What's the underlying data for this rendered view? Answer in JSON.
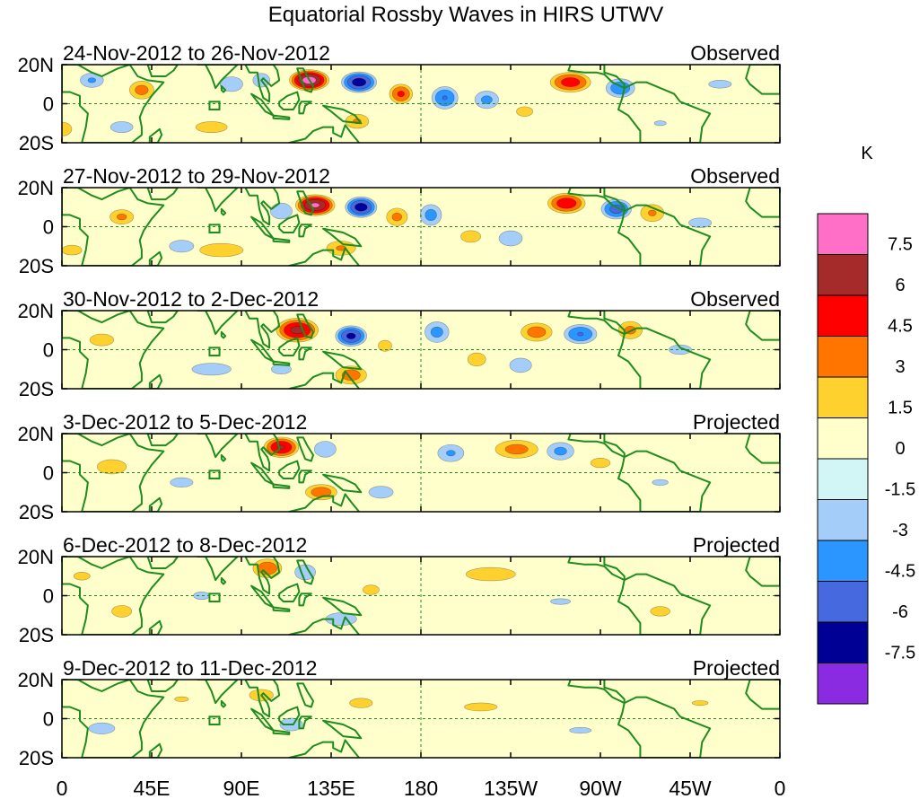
{
  "chart_data": {
    "type": "heatmap",
    "title": "Equatorial Rossby Waves in HIRS UTWV",
    "units": "K",
    "ylabel": "",
    "xlabel": "",
    "xlim": [
      0,
      360
    ],
    "ylim": [
      -20,
      20
    ],
    "x_ticks": [
      {
        "label": "0",
        "lon": 0
      },
      {
        "label": "45E",
        "lon": 45
      },
      {
        "label": "90E",
        "lon": 90
      },
      {
        "label": "135E",
        "lon": 135
      },
      {
        "label": "180",
        "lon": 180
      },
      {
        "label": "135W",
        "lon": 225
      },
      {
        "label": "90W",
        "lon": 270
      },
      {
        "label": "45W",
        "lon": 315
      },
      {
        "label": "0",
        "lon": 360
      }
    ],
    "y_ticks": [
      {
        "label": "20N",
        "lat": 20
      },
      {
        "label": "0",
        "lat": 0
      },
      {
        "label": "20S",
        "lat": -20
      }
    ],
    "colorbar": {
      "labels": [
        "7.5",
        "6",
        "4.5",
        "3",
        "1.5",
        "0",
        "-1.5",
        "-3",
        "-4.5",
        "-6",
        "-7.5"
      ],
      "colors": [
        "#ff6ec7",
        "#a52a2a",
        "#ff0000",
        "#ff7500",
        "#ffd12e",
        "#ffffcc",
        "#d2f5f5",
        "#a5cdf9",
        "#2b96ff",
        "#4669e0",
        "#000094",
        "#8a2be2"
      ]
    },
    "colors": {
      "coast": "#1e8c1e",
      "reference_line": "#1e8c1e"
    },
    "panels": [
      {
        "date_range": "24-Nov-2012 to 26-Nov-2012",
        "status": "Observed",
        "anomalies": [
          {
            "lon": 124,
            "lat": 12,
            "value": 8.3,
            "rx": 11,
            "ry": 6
          },
          {
            "lon": 149,
            "lat": 11,
            "value": -6.8,
            "rx": 10,
            "ry": 6
          },
          {
            "lon": 170,
            "lat": 5,
            "value": 4.8,
            "rx": 7,
            "ry": 6
          },
          {
            "lon": 192,
            "lat": 3,
            "value": -4.6,
            "rx": 8,
            "ry": 7
          },
          {
            "lon": 213,
            "lat": 2,
            "value": -3.4,
            "rx": 8,
            "ry": 6
          },
          {
            "lon": 255,
            "lat": 11,
            "value": 5.3,
            "rx": 12,
            "ry": 6
          },
          {
            "lon": 280,
            "lat": 8,
            "value": -4.2,
            "rx": 9,
            "ry": 6
          },
          {
            "lon": 40,
            "lat": 7,
            "value": 3.6,
            "rx": 8,
            "ry": 6
          },
          {
            "lon": 15,
            "lat": 12,
            "value": -3.2,
            "rx": 8,
            "ry": 5
          },
          {
            "lon": 85,
            "lat": 10,
            "value": -2.5,
            "rx": 9,
            "ry": 6
          },
          {
            "lon": 100,
            "lat": 12,
            "value": -3.0,
            "rx": 6,
            "ry": 5
          },
          {
            "lon": 75,
            "lat": -12,
            "value": 2.2,
            "rx": 14,
            "ry": 5
          },
          {
            "lon": 148,
            "lat": -9,
            "value": 3.2,
            "rx": 8,
            "ry": 5
          },
          {
            "lon": 30,
            "lat": -12,
            "value": -2.2,
            "rx": 10,
            "ry": 5
          },
          {
            "lon": 0,
            "lat": -13,
            "value": 3.0,
            "rx": 7,
            "ry": 5
          },
          {
            "lon": 232,
            "lat": -4,
            "value": 1.8,
            "rx": 10,
            "ry": 6
          },
          {
            "lon": 330,
            "lat": 10,
            "value": -1.8,
            "rx": 14,
            "ry": 5
          },
          {
            "lon": 300,
            "lat": -10,
            "value": -1.6,
            "rx": 12,
            "ry": 5
          }
        ]
      },
      {
        "date_range": "27-Nov-2012 to 29-Nov-2012",
        "status": "Observed",
        "anomalies": [
          {
            "lon": 127,
            "lat": 11,
            "value": 7.8,
            "rx": 11,
            "ry": 6
          },
          {
            "lon": 150,
            "lat": 10,
            "value": -6.8,
            "rx": 9,
            "ry": 6
          },
          {
            "lon": 168,
            "lat": 5,
            "value": 3.4,
            "rx": 7,
            "ry": 6
          },
          {
            "lon": 185,
            "lat": 6,
            "value": -3.6,
            "rx": 7,
            "ry": 7
          },
          {
            "lon": 253,
            "lat": 12,
            "value": 5.6,
            "rx": 11,
            "ry": 6
          },
          {
            "lon": 278,
            "lat": 9,
            "value": -5.2,
            "rx": 9,
            "ry": 6
          },
          {
            "lon": 296,
            "lat": 7,
            "value": 3.2,
            "rx": 8,
            "ry": 6
          },
          {
            "lon": 30,
            "lat": 5,
            "value": 3.3,
            "rx": 8,
            "ry": 5
          },
          {
            "lon": 110,
            "lat": 8,
            "value": -2.8,
            "rx": 8,
            "ry": 6
          },
          {
            "lon": 80,
            "lat": -12,
            "value": 2.8,
            "rx": 16,
            "ry": 5
          },
          {
            "lon": 140,
            "lat": -11,
            "value": 3.2,
            "rx": 10,
            "ry": 5
          },
          {
            "lon": 205,
            "lat": -5,
            "value": 2.0,
            "rx": 10,
            "ry": 6
          },
          {
            "lon": 225,
            "lat": -6,
            "value": -2.6,
            "rx": 9,
            "ry": 6
          },
          {
            "lon": 60,
            "lat": -10,
            "value": -2.4,
            "rx": 10,
            "ry": 5
          },
          {
            "lon": 320,
            "lat": 2,
            "value": -1.8,
            "rx": 14,
            "ry": 6
          },
          {
            "lon": 5,
            "lat": -12,
            "value": 2.0,
            "rx": 10,
            "ry": 5
          }
        ]
      },
      {
        "date_range": "30-Nov-2012 to 2-Dec-2012",
        "status": "Observed",
        "anomalies": [
          {
            "lon": 118,
            "lat": 10,
            "value": 6.5,
            "rx": 12,
            "ry": 7
          },
          {
            "lon": 145,
            "lat": 7,
            "value": -6.4,
            "rx": 9,
            "ry": 6
          },
          {
            "lon": 162,
            "lat": 2,
            "value": 2.2,
            "rx": 6,
            "ry": 5
          },
          {
            "lon": 188,
            "lat": 9,
            "value": -3.5,
            "rx": 8,
            "ry": 7
          },
          {
            "lon": 238,
            "lat": 9,
            "value": 3.8,
            "rx": 10,
            "ry": 6
          },
          {
            "lon": 260,
            "lat": 8,
            "value": -4.6,
            "rx": 10,
            "ry": 6
          },
          {
            "lon": 285,
            "lat": 10,
            "value": 3.4,
            "rx": 8,
            "ry": 6
          },
          {
            "lon": 145,
            "lat": -13,
            "value": 3.8,
            "rx": 10,
            "ry": 6
          },
          {
            "lon": 20,
            "lat": 5,
            "value": 2.0,
            "rx": 12,
            "ry": 6
          },
          {
            "lon": 75,
            "lat": -10,
            "value": -2.4,
            "rx": 16,
            "ry": 5
          },
          {
            "lon": 110,
            "lat": -10,
            "value": -2.0,
            "rx": 10,
            "ry": 5
          },
          {
            "lon": 208,
            "lat": -5,
            "value": 2.2,
            "rx": 8,
            "ry": 6
          },
          {
            "lon": 230,
            "lat": -8,
            "value": -2.4,
            "rx": 9,
            "ry": 6
          },
          {
            "lon": 310,
            "lat": 0,
            "value": -1.8,
            "rx": 14,
            "ry": 6
          }
        ]
      },
      {
        "date_range": "3-Dec-2012 to 5-Dec-2012",
        "status": "Projected",
        "anomalies": [
          {
            "lon": 110,
            "lat": 13,
            "value": 6.2,
            "rx": 10,
            "ry": 6
          },
          {
            "lon": 132,
            "lat": 12,
            "value": -2.8,
            "rx": 8,
            "ry": 6
          },
          {
            "lon": 130,
            "lat": -10,
            "value": 4.0,
            "rx": 10,
            "ry": 5
          },
          {
            "lon": 228,
            "lat": 12,
            "value": 3.6,
            "rx": 14,
            "ry": 6
          },
          {
            "lon": 195,
            "lat": 10,
            "value": -3.2,
            "rx": 9,
            "ry": 6
          },
          {
            "lon": 250,
            "lat": 11,
            "value": -3.4,
            "rx": 9,
            "ry": 6
          },
          {
            "lon": 270,
            "lat": 5,
            "value": 1.8,
            "rx": 12,
            "ry": 6
          },
          {
            "lon": 25,
            "lat": 3,
            "value": 2.4,
            "rx": 12,
            "ry": 6
          },
          {
            "lon": 60,
            "lat": -5,
            "value": -1.8,
            "rx": 14,
            "ry": 6
          },
          {
            "lon": 160,
            "lat": -10,
            "value": -2.4,
            "rx": 10,
            "ry": 5
          },
          {
            "lon": 300,
            "lat": -5,
            "value": -1.6,
            "rx": 16,
            "ry": 6
          }
        ]
      },
      {
        "date_range": "6-Dec-2012 to 8-Dec-2012",
        "status": "Projected",
        "anomalies": [
          {
            "lon": 103,
            "lat": 14,
            "value": 4.2,
            "rx": 9,
            "ry": 6
          },
          {
            "lon": 122,
            "lat": 12,
            "value": -2.6,
            "rx": 8,
            "ry": 6
          },
          {
            "lon": 215,
            "lat": 11,
            "value": 2.2,
            "rx": 22,
            "ry": 6
          },
          {
            "lon": 140,
            "lat": -12,
            "value": -2.6,
            "rx": 12,
            "ry": 5
          },
          {
            "lon": 155,
            "lat": 3,
            "value": 1.8,
            "rx": 10,
            "ry": 6
          },
          {
            "lon": 30,
            "lat": -8,
            "value": 2.0,
            "rx": 10,
            "ry": 6
          },
          {
            "lon": 10,
            "lat": 10,
            "value": 1.8,
            "rx": 10,
            "ry": 5
          },
          {
            "lon": 70,
            "lat": 0,
            "value": -1.6,
            "rx": 16,
            "ry": 8
          },
          {
            "lon": 300,
            "lat": -8,
            "value": 1.8,
            "rx": 12,
            "ry": 6
          },
          {
            "lon": 250,
            "lat": -3,
            "value": -1.6,
            "rx": 20,
            "ry": 6
          }
        ]
      },
      {
        "date_range": "9-Dec-2012 to 11-Dec-2012",
        "status": "Projected",
        "anomalies": [
          {
            "lon": 100,
            "lat": 12,
            "value": 2.0,
            "rx": 12,
            "ry": 6
          },
          {
            "lon": 115,
            "lat": -3,
            "value": -1.8,
            "rx": 14,
            "ry": 8
          },
          {
            "lon": 150,
            "lat": 8,
            "value": 1.8,
            "rx": 14,
            "ry": 6
          },
          {
            "lon": 210,
            "lat": 6,
            "value": 1.7,
            "rx": 24,
            "ry": 6
          },
          {
            "lon": 20,
            "lat": -5,
            "value": -1.8,
            "rx": 16,
            "ry": 7
          },
          {
            "lon": 60,
            "lat": 10,
            "value": 1.6,
            "rx": 14,
            "ry": 5
          },
          {
            "lon": 260,
            "lat": -6,
            "value": -1.6,
            "rx": 22,
            "ry": 6
          },
          {
            "lon": 320,
            "lat": 8,
            "value": 1.6,
            "rx": 16,
            "ry": 5
          }
        ]
      }
    ]
  }
}
